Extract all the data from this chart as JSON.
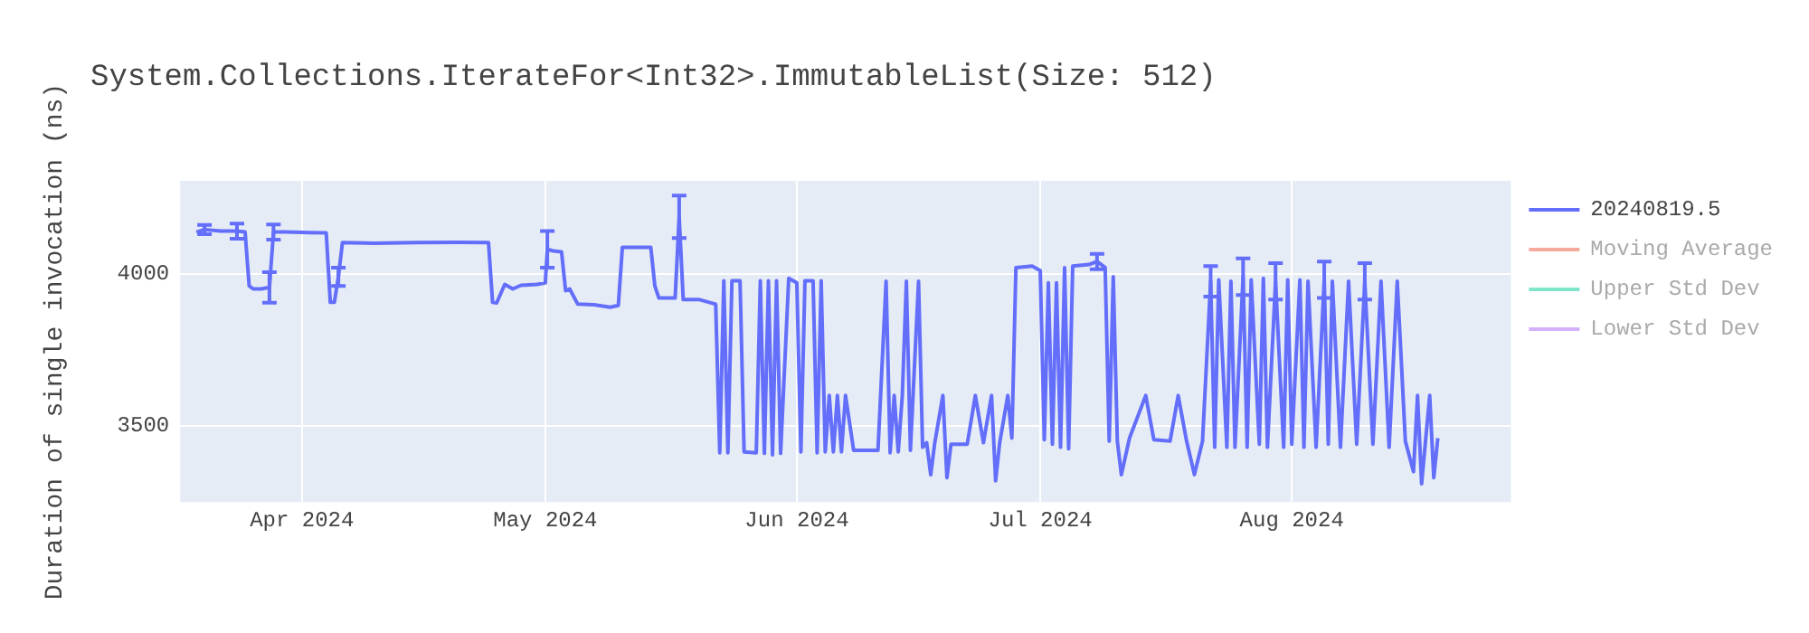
{
  "chart_data": {
    "type": "line",
    "title": "System.Collections.IterateFor<Int32>.ImmutableList(Size: 512)",
    "ylabel": "Duration of single invocation (ns)",
    "xlim": [
      "2024-03-17",
      "2024-08-28"
    ],
    "xticks": [
      {
        "value": "2024-04-01",
        "label": "Apr 2024"
      },
      {
        "value": "2024-05-01",
        "label": "May 2024"
      },
      {
        "value": "2024-06-01",
        "label": "Jun 2024"
      },
      {
        "value": "2024-07-01",
        "label": "Jul 2024"
      },
      {
        "value": "2024-08-01",
        "label": "Aug 2024"
      }
    ],
    "ylim": [
      3250,
      4305
    ],
    "yticks": [
      3500,
      4000
    ],
    "grid": true,
    "legend": "top right",
    "marker": "none",
    "line_style": "solid",
    "series": [
      {
        "name": "20240819.5",
        "color": "#636efa",
        "x": [
          "2024-03-19",
          "2024-03-20",
          "2024-03-22",
          "2024-03-24",
          "2024-03-25",
          "2024-03-25T12:00",
          "2024-03-26",
          "2024-03-27",
          "2024-03-28",
          "2024-03-28T12:00",
          "2024-03-30",
          "2024-04-02",
          "2024-04-04",
          "2024-04-04T12:00",
          "2024-04-05",
          "2024-04-05T12:00",
          "2024-04-06",
          "2024-04-10",
          "2024-04-15",
          "2024-04-20",
          "2024-04-24",
          "2024-04-24T12:00",
          "2024-04-25",
          "2024-04-26",
          "2024-04-27",
          "2024-04-28",
          "2024-04-30",
          "2024-05-01",
          "2024-05-01T06:00",
          "2024-05-02",
          "2024-05-03",
          "2024-05-03T12:00",
          "2024-05-04",
          "2024-05-05",
          "2024-05-07",
          "2024-05-09",
          "2024-05-10",
          "2024-05-10T12:00",
          "2024-05-14",
          "2024-05-14T12:00",
          "2024-05-15",
          "2024-05-17",
          "2024-05-17T12:00",
          "2024-05-18",
          "2024-05-20",
          "2024-05-22",
          "2024-05-22T12:00",
          "2024-05-23",
          "2024-05-23T12:00",
          "2024-05-24",
          "2024-05-25",
          "2024-05-25T12:00",
          "2024-05-27",
          "2024-05-27T12:00",
          "2024-05-28",
          "2024-05-28T12:00",
          "2024-05-29",
          "2024-05-29T12:00",
          "2024-05-30",
          "2024-05-31",
          "2024-06-01",
          "2024-06-01T12:00",
          "2024-06-02",
          "2024-06-03",
          "2024-06-03T12:00",
          "2024-06-04",
          "2024-06-04T12:00",
          "2024-06-05",
          "2024-06-05T12:00",
          "2024-06-06",
          "2024-06-06T12:00",
          "2024-06-07",
          "2024-06-08",
          "2024-06-11",
          "2024-06-12",
          "2024-06-12T12:00",
          "2024-06-13",
          "2024-06-13T12:00",
          "2024-06-14",
          "2024-06-14T12:00",
          "2024-06-15",
          "2024-06-16",
          "2024-06-16T12:00",
          "2024-06-17",
          "2024-06-17T12:00",
          "2024-06-18",
          "2024-06-19",
          "2024-06-19T12:00",
          "2024-06-20",
          "2024-06-22",
          "2024-06-23",
          "2024-06-24",
          "2024-06-25",
          "2024-06-25T12:00",
          "2024-06-26",
          "2024-06-27",
          "2024-06-27T12:00",
          "2024-06-28",
          "2024-06-30",
          "2024-07-01",
          "2024-07-01T12:00",
          "2024-07-02",
          "2024-07-02T12:00",
          "2024-07-03",
          "2024-07-03T12:00",
          "2024-07-04",
          "2024-07-04T12:00",
          "2024-07-05",
          "2024-07-07",
          "2024-07-08",
          "2024-07-09",
          "2024-07-09T12:00",
          "2024-07-10",
          "2024-07-10T12:00",
          "2024-07-11",
          "2024-07-12",
          "2024-07-14",
          "2024-07-15",
          "2024-07-17",
          "2024-07-18",
          "2024-07-19",
          "2024-07-20",
          "2024-07-21",
          "2024-07-22",
          "2024-07-22T12:00",
          "2024-07-23",
          "2024-07-24",
          "2024-07-24T12:00",
          "2024-07-25",
          "2024-07-26",
          "2024-07-26T12:00",
          "2024-07-27",
          "2024-07-28",
          "2024-07-28T12:00",
          "2024-07-29",
          "2024-07-30",
          "2024-07-31",
          "2024-07-31T12:00",
          "2024-08-01",
          "2024-08-02",
          "2024-08-02T12:00",
          "2024-08-03",
          "2024-08-04",
          "2024-08-05",
          "2024-08-05T12:00",
          "2024-08-06",
          "2024-08-07",
          "2024-08-08",
          "2024-08-09",
          "2024-08-10",
          "2024-08-11",
          "2024-08-12",
          "2024-08-13",
          "2024-08-14",
          "2024-08-15",
          "2024-08-16",
          "2024-08-16T12:00",
          "2024-08-17",
          "2024-08-18",
          "2024-08-18T12:00",
          "2024-08-19"
        ],
        "values": [
          4137,
          4145,
          4140,
          4140,
          4137,
          3960,
          3950,
          3950,
          3955,
          4137,
          4137,
          4135,
          4134,
          3906,
          3906,
          3990,
          4102,
          4100,
          4102,
          4103,
          4102,
          3906,
          3904,
          3965,
          3950,
          3962,
          3965,
          3970,
          4080,
          4075,
          4072,
          3944,
          3950,
          3900,
          3898,
          3890,
          3896,
          4087,
          4087,
          3960,
          3920,
          3920,
          4187,
          3915,
          3915,
          3900,
          3412,
          3977,
          3412,
          3977,
          3977,
          3415,
          3412,
          3977,
          3410,
          3977,
          3405,
          3977,
          3410,
          3985,
          3970,
          3415,
          3977,
          3977,
          3412,
          3977,
          3415,
          3600,
          3415,
          3600,
          3415,
          3600,
          3420,
          3420,
          3975,
          3412,
          3600,
          3415,
          3600,
          3975,
          3420,
          3975,
          3430,
          3445,
          3340,
          3445,
          3600,
          3330,
          3440,
          3440,
          3600,
          3445,
          3600,
          3320,
          3445,
          3600,
          3460,
          4020,
          4025,
          4010,
          3455,
          3970,
          3440,
          3970,
          3430,
          4020,
          3425,
          4025,
          4030,
          4040,
          4020,
          3450,
          3990,
          3450,
          3340,
          3460,
          3600,
          3455,
          3450,
          3600,
          3455,
          3340,
          3450,
          3975,
          3430,
          3980,
          3430,
          3975,
          3430,
          3990,
          3430,
          3980,
          3440,
          3985,
          3430,
          3975,
          3430,
          3980,
          3440,
          3980,
          3430,
          3975,
          3430,
          3980,
          3440,
          3975,
          3430,
          3975,
          3440,
          3975,
          3440,
          3975,
          3430,
          3975,
          3450,
          3350,
          3600,
          3310,
          3600,
          3330,
          3460
        ],
        "errors": [
          null,
          15,
          null,
          25,
          null,
          null,
          null,
          null,
          50,
          25,
          null,
          null,
          null,
          null,
          null,
          30,
          null,
          null,
          null,
          null,
          null,
          null,
          null,
          null,
          null,
          null,
          null,
          null,
          60,
          null,
          null,
          null,
          null,
          null,
          null,
          null,
          null,
          null,
          null,
          null,
          null,
          null,
          70,
          null,
          null,
          null,
          null,
          null,
          null,
          null,
          null,
          null,
          null,
          null,
          null,
          null,
          null,
          null,
          null,
          null,
          null,
          null,
          null,
          null,
          null,
          null,
          null,
          null,
          null,
          null,
          null,
          null,
          null,
          null,
          null,
          null,
          null,
          null,
          null,
          null,
          null,
          null,
          null,
          null,
          null,
          null,
          null,
          null,
          null,
          null,
          null,
          null,
          null,
          null,
          null,
          null,
          null,
          null,
          null,
          null,
          null,
          null,
          null,
          null,
          null,
          null,
          null,
          null,
          null,
          25,
          null,
          null,
          null,
          null,
          null,
          null,
          null,
          null,
          null,
          null,
          null,
          null,
          null,
          50,
          null,
          null,
          null,
          null,
          null,
          60,
          null,
          null,
          null,
          null,
          null,
          60,
          null,
          null,
          null,
          null,
          null,
          null,
          null,
          60,
          null,
          null,
          null,
          null,
          null,
          60,
          null,
          null,
          null,
          null,
          null,
          null,
          null,
          null,
          null,
          null,
          null
        ]
      },
      {
        "name": "Moving Average",
        "color": "#f6a99d"
      },
      {
        "name": "Upper Std Dev",
        "color": "#80e5cb"
      },
      {
        "name": "Lower Std Dev",
        "color": "#d5b1fd"
      }
    ]
  }
}
